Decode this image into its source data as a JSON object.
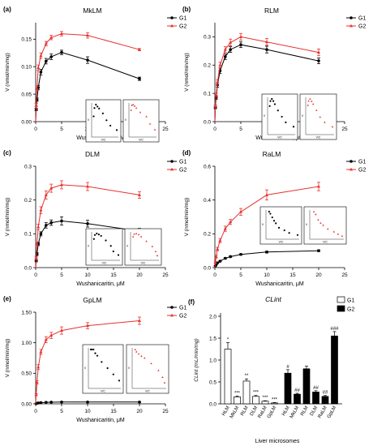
{
  "colors": {
    "g1": "#000000",
    "g2": "#e8312f",
    "bar_g1": "#ffffff",
    "bar_g2": "#000000"
  },
  "chart_data": [
    {
      "type": "line",
      "panel_label": "(a)",
      "title": "MkLM",
      "xlabel": "Wushanicaritin, μM",
      "ylabel": "V (nmol/min/mg)",
      "xlim": [
        0,
        25
      ],
      "ylim": [
        0,
        0.18
      ],
      "xticks": [
        "0",
        "5",
        "10",
        "15",
        "20",
        "25"
      ],
      "yticks": [
        "0.00",
        "0.05",
        "0.10",
        "0.15"
      ],
      "x": [
        0.1,
        0.25,
        0.5,
        1,
        2,
        3,
        5,
        10,
        20
      ],
      "series": [
        {
          "name": "G1",
          "values": [
            0.022,
            0.04,
            0.062,
            0.09,
            0.11,
            0.118,
            0.126,
            0.112,
            0.078
          ],
          "err": [
            0.002,
            0.003,
            0.004,
            0.005,
            0.005,
            0.005,
            0.004,
            0.006,
            0.003
          ]
        },
        {
          "name": "G2",
          "values": [
            0.03,
            0.06,
            0.098,
            0.12,
            0.142,
            0.153,
            0.16,
            0.157,
            0.131
          ],
          "err": [
            0.003,
            0.004,
            0.005,
            0.005,
            0.004,
            0.004,
            0.004,
            0.005,
            0.002
          ]
        }
      ],
      "inset_label_y": "V",
      "inset_label_x": "V/C"
    },
    {
      "type": "line",
      "panel_label": "(b)",
      "title": "RLM",
      "xlabel": "Wushanicaritin, μM",
      "ylabel": "V (nmol/min/mg)",
      "xlim": [
        0,
        25
      ],
      "ylim": [
        0,
        0.35
      ],
      "xticks": [
        "0",
        "5",
        "10",
        "15",
        "20",
        "25"
      ],
      "yticks": [
        "0.0",
        "0.1",
        "0.2",
        "0.3"
      ],
      "x": [
        0.1,
        0.25,
        0.5,
        1,
        2,
        3,
        5,
        10,
        20
      ],
      "series": [
        {
          "name": "G1",
          "values": [
            0.05,
            0.085,
            0.13,
            0.18,
            0.23,
            0.255,
            0.272,
            0.255,
            0.215
          ],
          "err": [
            0.004,
            0.006,
            0.008,
            0.01,
            0.01,
            0.01,
            0.01,
            0.012,
            0.01
          ]
        },
        {
          "name": "G2",
          "values": [
            0.055,
            0.095,
            0.14,
            0.2,
            0.255,
            0.28,
            0.3,
            0.282,
            0.245
          ],
          "err": [
            0.004,
            0.006,
            0.008,
            0.01,
            0.01,
            0.012,
            0.012,
            0.012,
            0.012
          ]
        }
      ],
      "inset_label_y": "V",
      "inset_label_x": "V/C"
    },
    {
      "type": "line",
      "panel_label": "(c)",
      "title": "DLM",
      "xlabel": "Wushanicaritin, μM",
      "ylabel": "V (nmol/min/mg)",
      "xlim": [
        0,
        25
      ],
      "ylim": [
        0,
        0.3
      ],
      "xticks": [
        "0",
        "5",
        "10",
        "15",
        "20",
        "25"
      ],
      "yticks": [
        "0.0",
        "0.1",
        "0.2",
        "0.3"
      ],
      "x": [
        0.1,
        0.25,
        0.5,
        1,
        2,
        3,
        5,
        10,
        20
      ],
      "series": [
        {
          "name": "G1",
          "values": [
            0.02,
            0.04,
            0.07,
            0.1,
            0.125,
            0.133,
            0.138,
            0.13,
            0.108
          ],
          "err": [
            0.003,
            0.004,
            0.005,
            0.006,
            0.008,
            0.008,
            0.012,
            0.01,
            0.008
          ]
        },
        {
          "name": "G2",
          "values": [
            0.03,
            0.07,
            0.12,
            0.17,
            0.215,
            0.235,
            0.245,
            0.24,
            0.215
          ],
          "err": [
            0.003,
            0.005,
            0.008,
            0.01,
            0.012,
            0.012,
            0.012,
            0.012,
            0.01
          ]
        }
      ],
      "inset_label_y": "V",
      "inset_label_x": "V/C"
    },
    {
      "type": "line",
      "panel_label": "(d)",
      "title": "RaLM",
      "xlabel": "Wushanicaritin, μM",
      "ylabel": "V (nmol/min/mg)",
      "xlim": [
        0,
        25
      ],
      "ylim": [
        0,
        0.6
      ],
      "xticks": [
        "0",
        "5",
        "10",
        "15",
        "20",
        "25"
      ],
      "yticks": [
        "0.0",
        "0.2",
        "0.4",
        "0.6"
      ],
      "x": [
        0.1,
        0.25,
        0.5,
        1,
        2,
        3,
        5,
        10,
        20
      ],
      "series": [
        {
          "name": "G1",
          "values": [
            0.01,
            0.018,
            0.028,
            0.038,
            0.055,
            0.065,
            0.078,
            0.092,
            0.1
          ],
          "err": [
            0.002,
            0.002,
            0.003,
            0.003,
            0.004,
            0.004,
            0.004,
            0.005,
            0.005
          ]
        },
        {
          "name": "G2",
          "values": [
            0.03,
            0.065,
            0.11,
            0.16,
            0.23,
            0.27,
            0.33,
            0.43,
            0.48
          ],
          "err": [
            0.005,
            0.008,
            0.01,
            0.012,
            0.015,
            0.015,
            0.02,
            0.03,
            0.025
          ]
        }
      ],
      "inset_label_y": "V",
      "inset_label_x": "V/C"
    },
    {
      "type": "line",
      "panel_label": "(e)",
      "title": "GpLM",
      "xlabel": "Wushanicaritin, μM",
      "ylabel": "V (nmol/min/mg)",
      "xlim": [
        0,
        25
      ],
      "ylim": [
        0,
        1.5
      ],
      "xticks": [
        "0",
        "5",
        "10",
        "15",
        "20",
        "25"
      ],
      "yticks": [
        "0.00",
        "0.50",
        "1.00",
        "1.50"
      ],
      "x": [
        0.1,
        0.25,
        0.5,
        1,
        2,
        3,
        5,
        10,
        20
      ],
      "series": [
        {
          "name": "G1",
          "values": [
            0.005,
            0.01,
            0.015,
            0.02,
            0.025,
            0.027,
            0.03,
            0.03,
            0.03
          ],
          "err": [
            0.002,
            0.002,
            0.002,
            0.003,
            0.003,
            0.003,
            0.003,
            0.003,
            0.003
          ]
        },
        {
          "name": "G2",
          "values": [
            0.15,
            0.35,
            0.6,
            0.85,
            1.05,
            1.12,
            1.2,
            1.28,
            1.36
          ],
          "err": [
            0.015,
            0.03,
            0.04,
            0.04,
            0.05,
            0.05,
            0.06,
            0.05,
            0.06
          ]
        }
      ],
      "inset_label_y": "V",
      "inset_label_x": "V/C"
    },
    {
      "type": "bar",
      "panel_label": "(f)",
      "title": "CLint",
      "xlabel": "Liver microsomes",
      "ylabel": "CLint (mL/min/mg)",
      "ylim": [
        0,
        2.0
      ],
      "yticks": [
        "0.0",
        "0.5",
        "1.0",
        "1.5",
        "2.0"
      ],
      "categories": [
        "HLM",
        "MkLM",
        "RLM",
        "DLM",
        "RaLM",
        "GpLM"
      ],
      "series": [
        {
          "name": "G1",
          "values": [
            1.25,
            0.16,
            0.52,
            0.17,
            0.06,
            0.02
          ],
          "err": [
            0.15,
            0.02,
            0.05,
            0.02,
            0.01,
            0.01
          ],
          "marks": [
            "*",
            "***",
            "**",
            "***",
            "***",
            "***"
          ]
        },
        {
          "name": "G2",
          "values": [
            0.7,
            0.22,
            0.8,
            0.27,
            0.17,
            1.55
          ],
          "err": [
            0.08,
            0.02,
            0.06,
            0.03,
            0.02,
            0.1
          ],
          "marks": [
            "#",
            "##",
            "",
            "##",
            "##",
            "###"
          ]
        }
      ]
    }
  ]
}
